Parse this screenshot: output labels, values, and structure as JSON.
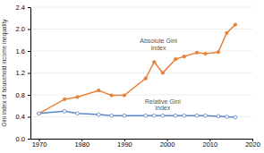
{
  "chart_data": {
    "type": "line",
    "y_label": "Gini index of household income inequality",
    "x": [
      1970,
      1976,
      1979,
      1984,
      1987,
      1990,
      1995,
      1997,
      1999,
      2002,
      2004,
      2007,
      2009,
      2012,
      2014,
      2016
    ],
    "series": [
      {
        "color": "#e8823a",
        "marker": "circle",
        "values": [
          0.46,
          0.72,
          0.76,
          0.88,
          0.79,
          0.79,
          1.1,
          1.4,
          1.2,
          1.45,
          1.5,
          1.57,
          1.55,
          1.58,
          1.93,
          2.08
        ]
      },
      {
        "color": "#5b86c5",
        "marker": "circle-open",
        "values": [
          0.46,
          0.5,
          0.46,
          0.44,
          0.42,
          0.42,
          0.42,
          0.42,
          0.42,
          0.42,
          0.42,
          0.42,
          0.42,
          0.41,
          0.4,
          0.39
        ]
      }
    ],
    "annotations": [
      {
        "text": "Absolute Gini\nindex",
        "x": 1998,
        "y": 1.72
      },
      {
        "text": "Relative Gini\nindex",
        "x": 1999,
        "y": 0.62
      }
    ],
    "xlim": [
      1968,
      2020
    ],
    "xticks": [
      1970,
      1980,
      1990,
      2000,
      2010,
      2020
    ],
    "ylim": [
      0.0,
      2.4
    ],
    "yticks": [
      {
        "value": 0,
        "label": "0.0"
      },
      0.4,
      0.8,
      1.2,
      1.6,
      {
        "value": 2,
        "label": "2.0"
      },
      2.4
    ],
    "grid": true
  }
}
